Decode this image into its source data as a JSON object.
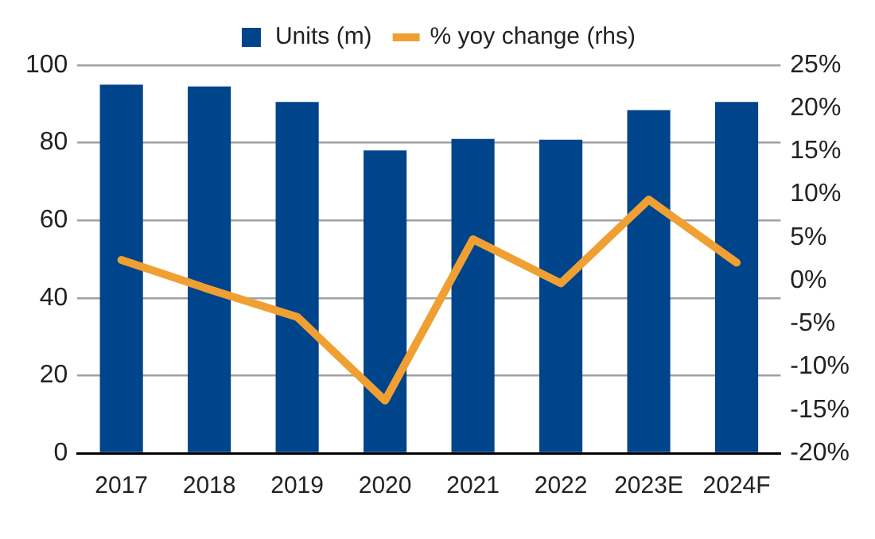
{
  "chart_data": {
    "type": "bar",
    "categories": [
      "2017",
      "2018",
      "2019",
      "2020",
      "2021",
      "2022",
      "2023E",
      "2024F"
    ],
    "series": [
      {
        "name": "Units (m)",
        "color": "#00448c",
        "values": [
          95,
          94.5,
          90.5,
          78,
          81,
          80.8,
          88.4,
          90.5
        ]
      },
      {
        "name": "% yoy change (rhs)",
        "type": "line",
        "axis": "y2",
        "color": "#f0a032",
        "values": [
          2.4,
          -1,
          -4.2,
          -13.9,
          4.8,
          -0.3,
          9.4,
          2.1
        ]
      }
    ],
    "ylim": [
      0,
      100
    ],
    "yticks": [
      0,
      20,
      40,
      60,
      80,
      100
    ],
    "y2lim": [
      -20,
      25
    ],
    "y2ticks": [
      {
        "value": -20,
        "label": "-20%"
      },
      {
        "value": -15,
        "label": "-15%"
      },
      {
        "value": -10,
        "label": "-10%"
      },
      {
        "value": -5,
        "label": "-5%"
      },
      {
        "value": 0,
        "label": "0%"
      },
      {
        "value": 5,
        "label": "5%"
      },
      {
        "value": 10,
        "label": "10%"
      },
      {
        "value": 15,
        "label": "15%"
      },
      {
        "value": 20,
        "label": "20%"
      },
      {
        "value": 25,
        "label": "25%"
      }
    ],
    "grid": "y",
    "legend": "top",
    "marker": "none"
  }
}
